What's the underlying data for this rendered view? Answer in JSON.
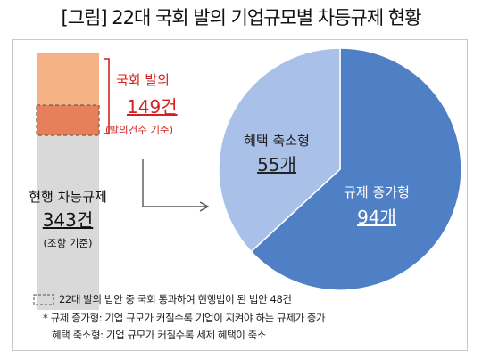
{
  "title": "[그림] 22대 국회 발의 기업규모별 차등규제 현황",
  "bar": {
    "bill_label": "국회 발의",
    "bill_value": "149건",
    "bill_basis": "(발의건수 기준)",
    "current_label": "현행 차등규제",
    "current_value": "343건",
    "current_basis": "(조항 기준)"
  },
  "pie": {
    "increase_label": "규제 증가형",
    "increase_value": "94개",
    "benefit_label": "혜택 축소형",
    "benefit_value": "55개"
  },
  "notes": {
    "dashed_note": "22대 발의 법안 중 국회 통과하여 현행법이 된 법안 48건",
    "note1": "* 규제 증가형: 기업 규모가 커질수록 기업이 지켜야 하는 규제가 증가",
    "note2": "혜택 축소형: 기업 규모가 커질수록 세제 혜택이 축소"
  },
  "colors": {
    "bill_bar": "#f4b183",
    "overlap_box": "#e6805a",
    "current_bar": "#d9d9d9",
    "red_text": "#d62020",
    "pie_increase": "#4f7fc4",
    "pie_benefit": "#a9c1e8"
  },
  "chart_data": {
    "type": "pie",
    "categories": [
      "규제 증가형",
      "혜택 축소형"
    ],
    "values": [
      94,
      55
    ],
    "total_bills": 149,
    "enacted_bills": 48,
    "current_regulations": 343
  }
}
